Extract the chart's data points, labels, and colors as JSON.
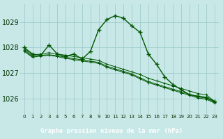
{
  "title": "Graphe pression niveau de la mer (hPa)",
  "bg_color": "#c8e8e8",
  "label_bg_color": "#3a7a3a",
  "grid_color": "#a0cccc",
  "line_color": "#005500",
  "marker_color": "#005500",
  "label_text_color": "#ffffff",
  "ylabel_ticks": [
    1026,
    1027,
    1028,
    1029
  ],
  "xlim": [
    -0.5,
    23.5
  ],
  "ylim": [
    1025.4,
    1029.7
  ],
  "series": [
    [
      1027.95,
      1027.7,
      1027.75,
      1027.8,
      1027.75,
      1027.7,
      1027.65,
      1027.6,
      1027.55,
      1027.5,
      1027.35,
      1027.25,
      1027.15,
      1027.05,
      1026.95,
      1026.8,
      1026.7,
      1026.6,
      1026.5,
      1026.4,
      1026.3,
      1026.2,
      1026.15,
      1025.9
    ],
    [
      1027.9,
      1027.65,
      1027.7,
      1027.72,
      1027.68,
      1027.62,
      1027.57,
      1027.52,
      1027.47,
      1027.42,
      1027.27,
      1027.17,
      1027.07,
      1026.97,
      1026.82,
      1026.67,
      1026.57,
      1026.47,
      1026.37,
      1026.27,
      1026.17,
      1026.07,
      1026.02,
      1025.87
    ],
    [
      1028.0,
      1027.75,
      1027.7,
      1028.1,
      1027.75,
      1027.65,
      1027.75,
      1027.55,
      1027.85,
      1028.7,
      1029.1,
      1029.25,
      1029.15,
      1028.85,
      1028.6,
      1027.75,
      1027.35,
      1026.85,
      1026.55,
      1026.35,
      1026.15,
      1026.1,
      1026.05,
      1025.9
    ],
    [
      1027.85,
      1027.62,
      1027.67,
      1027.7,
      1027.65,
      1027.58,
      1027.53,
      1027.48,
      1027.43,
      1027.38,
      1027.23,
      1027.13,
      1027.03,
      1026.93,
      1026.78,
      1026.63,
      1026.53,
      1026.43,
      1026.33,
      1026.23,
      1026.13,
      1026.03,
      1025.98,
      1025.83
    ]
  ],
  "x_labels": [
    "0",
    "1",
    "2",
    "3",
    "4",
    "5",
    "6",
    "7",
    "8",
    "9",
    "10",
    "11",
    "12",
    "13",
    "14",
    "15",
    "16",
    "17",
    "18",
    "19",
    "20",
    "21",
    "22",
    "23"
  ],
  "ytick_fontsize": 7,
  "xtick_fontsize": 5,
  "label_fontsize": 6.5
}
